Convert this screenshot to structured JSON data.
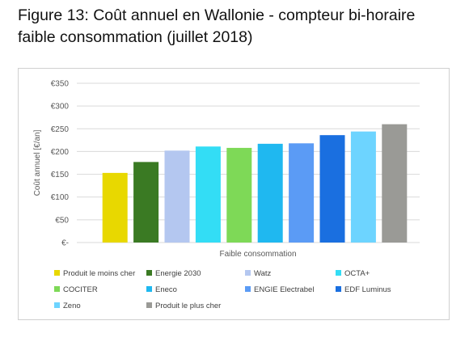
{
  "figure": {
    "title_line1": "Figure 13: Coût annuel en Wallonie - compteur bi-horaire",
    "title_line2": "faible consommation (juillet 2018)"
  },
  "chart_data": {
    "type": "bar",
    "xlabel": "Faible consommation",
    "ylabel": "Coût annuel [€/an]",
    "ylim": [
      0,
      350
    ],
    "yticks": [
      0,
      50,
      100,
      150,
      200,
      250,
      300,
      350
    ],
    "ytick_labels": [
      "€-",
      "€50",
      "€100",
      "€150",
      "€200",
      "€250",
      "€300",
      "€350"
    ],
    "grid": true,
    "legend_position": "bottom",
    "series": [
      {
        "name": "Produit le moins cher",
        "value": 153,
        "color": "#e8d800"
      },
      {
        "name": "Energie 2030",
        "value": 177,
        "color": "#3a7a23"
      },
      {
        "name": "Watz",
        "value": 202,
        "color": "#b4c7f0"
      },
      {
        "name": "OCTA+",
        "value": 211,
        "color": "#33ddf5"
      },
      {
        "name": "COCITER",
        "value": 208,
        "color": "#7ed957"
      },
      {
        "name": "Eneco",
        "value": 217,
        "color": "#1fb8f0"
      },
      {
        "name": "ENGIE Electrabel",
        "value": 218,
        "color": "#5b9bf5"
      },
      {
        "name": "EDF Luminus",
        "value": 236,
        "color": "#1a6fe0"
      },
      {
        "name": "Zeno",
        "value": 244,
        "color": "#6dd4ff"
      },
      {
        "name": "Produit le plus cher",
        "value": 260,
        "color": "#9a9a96"
      }
    ]
  }
}
